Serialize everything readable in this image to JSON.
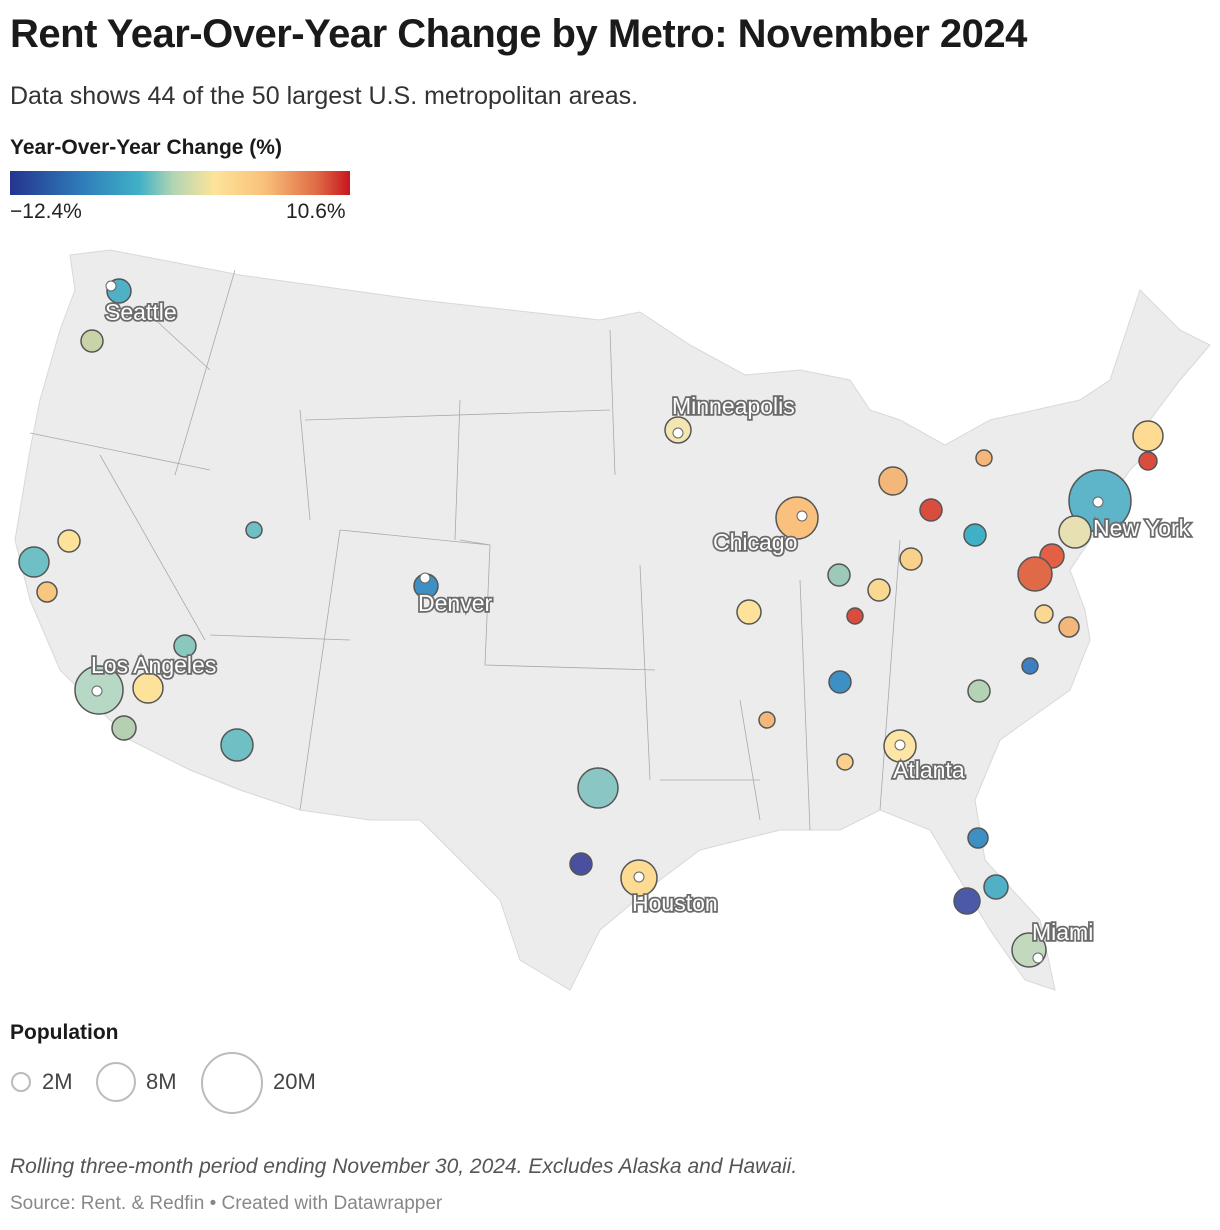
{
  "title": "Rent Year-Over-Year Change by Metro: November 2024",
  "subtitle": "Data shows 44 of the 50 largest U.S. metropolitan areas.",
  "color_legend": {
    "title": "Year-Over-Year Change (%)",
    "min_label": "−12.4%",
    "max_label": "10.6%",
    "min": -12.4,
    "max": 10.6,
    "colors": [
      "#24348f",
      "#2f7fbb",
      "#3fb1c6",
      "#b2d5b4",
      "#fde49a",
      "#f9c07a",
      "#e06c46",
      "#c7161e"
    ]
  },
  "size_legend": {
    "title": "Population",
    "items": [
      "2M",
      "8M",
      "20M"
    ]
  },
  "city_labels": [
    "Seattle",
    "Denver",
    "Los Angeles",
    "Minneapolis",
    "Chicago",
    "New York",
    "Atlanta",
    "Houston",
    "Miami"
  ],
  "map_fill": "#ececec",
  "note": "Rolling three-month period ending November 30, 2024. Excludes Alaska and Hawaii.",
  "source": "Source: Rent. & Redfin • Created with Datawrapper"
}
